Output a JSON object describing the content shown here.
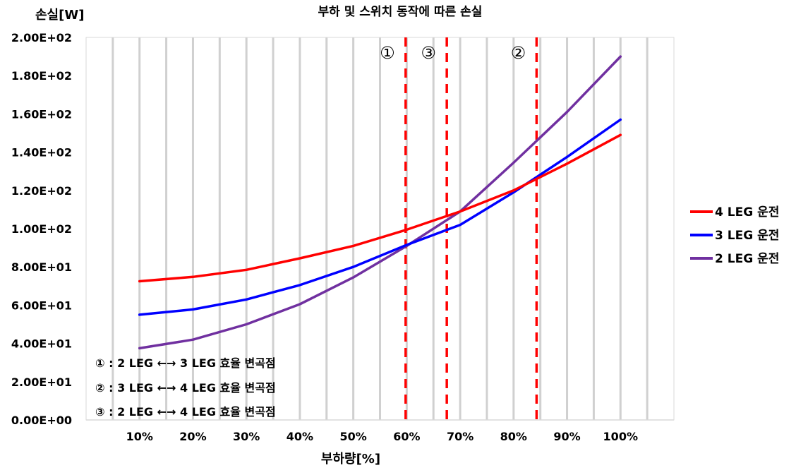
{
  "chart_data": {
    "type": "line",
    "title": "부하 및 스위치 동작에 따른 손실",
    "xlabel": "부하량[%]",
    "ylabel": "손실[W]",
    "categories": [
      "10%",
      "20%",
      "30%",
      "40%",
      "50%",
      "60%",
      "70%",
      "80%",
      "90%",
      "100%"
    ],
    "x": [
      10,
      20,
      30,
      40,
      50,
      60,
      70,
      80,
      90,
      100
    ],
    "xlim": [
      0,
      110
    ],
    "ylim": [
      0,
      200
    ],
    "yticks": [
      0,
      20,
      40,
      60,
      80,
      100,
      120,
      140,
      160,
      180,
      200
    ],
    "ytick_labels": [
      "0.00E+00",
      "2.00E+01",
      "4.00E+01",
      "6.00E+01",
      "8.00E+01",
      "1.00E+02",
      "1.20E+02",
      "1.40E+02",
      "1.60E+02",
      "1.80E+02",
      "2.00E+02"
    ],
    "grid": "vertical",
    "legend_position": "right",
    "series": [
      {
        "name": "4 LEG 운전",
        "color": "#ff0000",
        "values": [
          72.5,
          74.8,
          78.5,
          84.5,
          91,
          99.5,
          109,
          120,
          134,
          149
        ]
      },
      {
        "name": "3 LEG 운전",
        "color": "#0000ff",
        "values": [
          55,
          57.8,
          63,
          70.5,
          80,
          91.5,
          102,
          119,
          137.5,
          157
        ]
      },
      {
        "name": "2 LEG 운전",
        "color": "#7030a0",
        "values": [
          37.5,
          42,
          50,
          60.5,
          74.5,
          91,
          109,
          134.5,
          161,
          190
        ]
      }
    ],
    "vlines": [
      {
        "x": 59.8,
        "marker": "①",
        "color": "#ff0000"
      },
      {
        "x": 67.5,
        "marker": "③",
        "color": "#ff0000"
      },
      {
        "x": 84.3,
        "marker": "②",
        "color": "#ff0000"
      }
    ],
    "annotations": [
      "① : 2 LEG ←→ 3 LEG 효율 변곡점",
      "② : 3 LEG ←→ 4 LEG 효율 변곡점",
      "③ : 2 LEG ←→ 4 LEG 효율 변곡점"
    ]
  }
}
